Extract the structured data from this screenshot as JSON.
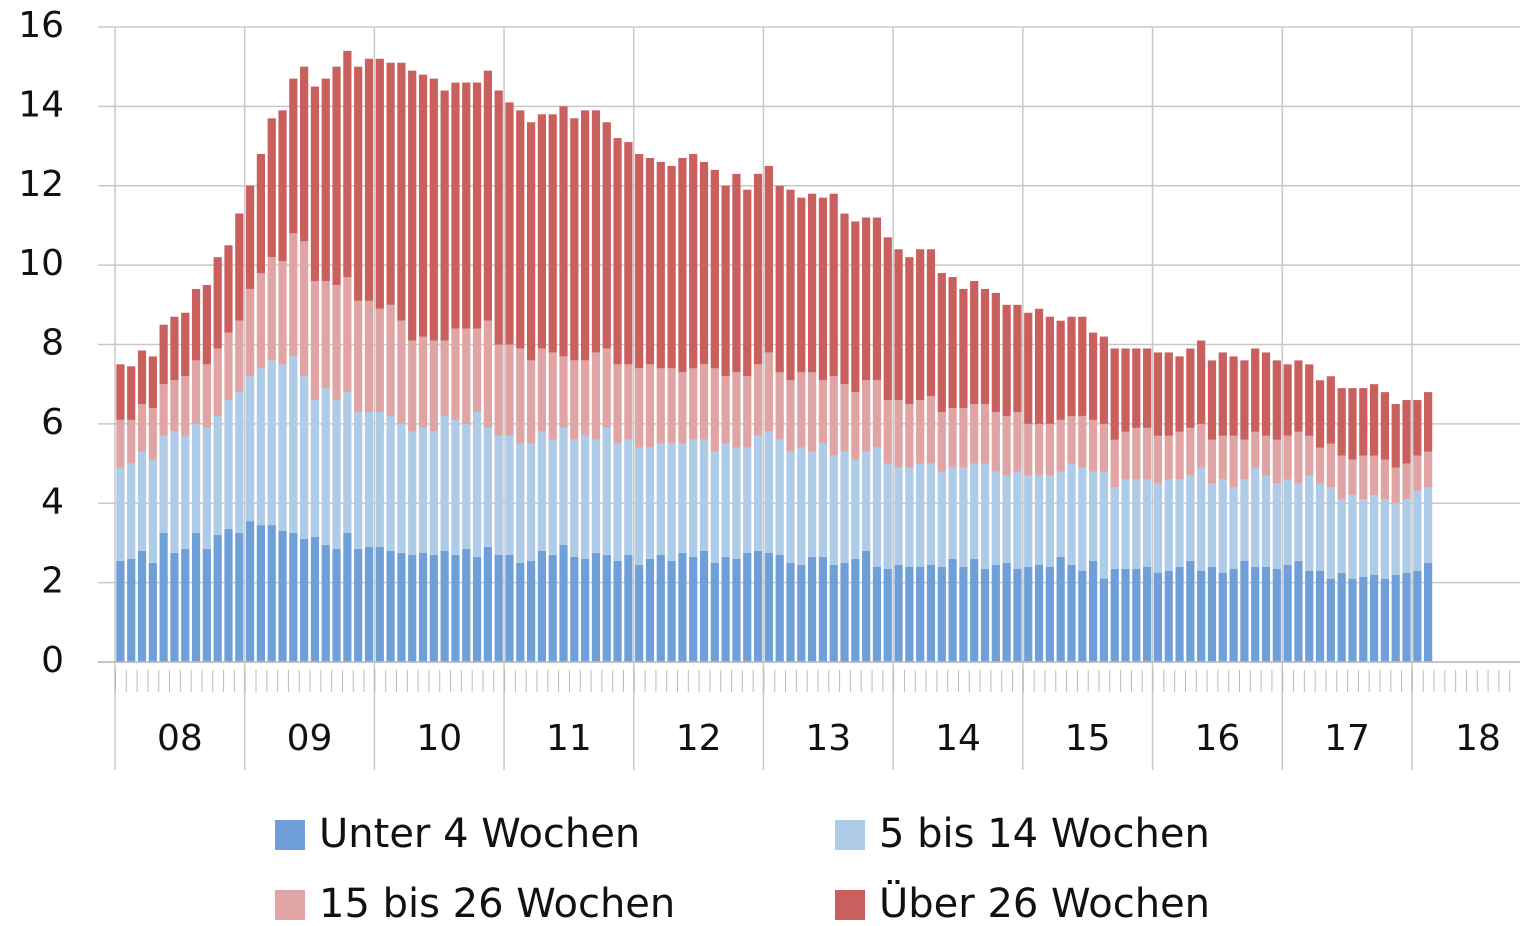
{
  "chart_data": {
    "type": "stacked_bar",
    "categories": [
      null,
      null,
      null,
      null,
      null,
      null,
      null,
      null,
      null,
      null,
      null,
      null,
      null,
      null,
      null,
      null,
      null,
      null,
      null,
      null,
      null,
      null,
      null,
      null,
      null,
      null,
      null,
      null,
      null,
      null,
      null,
      null,
      null,
      null,
      null,
      null,
      null,
      null,
      null,
      null,
      null,
      null,
      null,
      null,
      null,
      null,
      null,
      null,
      null,
      null,
      null,
      null,
      null,
      null,
      null,
      null,
      null,
      null,
      null,
      null,
      null,
      null,
      null,
      null,
      null,
      null,
      null,
      null,
      null,
      null,
      null,
      null,
      null,
      null,
      null,
      null,
      null,
      null,
      null,
      null,
      null,
      null,
      null,
      null,
      null,
      null,
      null,
      null,
      null,
      null,
      null,
      null,
      null,
      null,
      null,
      null,
      null,
      null,
      null,
      null,
      null,
      null,
      null,
      null,
      null,
      null,
      null,
      null,
      null,
      null,
      null,
      null,
      null,
      null,
      null,
      null,
      null,
      null,
      null,
      null,
      null,
      null,
      null,
      null,
      null,
      null,
      null,
      null,
      null,
      null
    ],
    "year_labels": [
      "08",
      "09",
      "10",
      "11",
      "12",
      "13",
      "14",
      "15",
      "16",
      "17",
      "18"
    ],
    "ylim": [
      0,
      16
    ],
    "yticks": [
      0,
      2,
      4,
      6,
      8,
      10,
      12,
      14,
      16
    ],
    "grid": true,
    "series": [
      {
        "name": "Unter 4 Wochen",
        "color": "#6f9fd8",
        "values": [
          2.55,
          2.6,
          2.8,
          2.5,
          3.25,
          2.75,
          2.85,
          3.25,
          2.85,
          3.2,
          3.35,
          3.25,
          3.55,
          3.45,
          3.45,
          3.3,
          3.25,
          3.1,
          3.15,
          2.95,
          2.85,
          3.25,
          2.85,
          2.9,
          2.9,
          2.8,
          2.75,
          2.7,
          2.75,
          2.7,
          2.8,
          2.7,
          2.85,
          2.65,
          2.9,
          2.7,
          2.7,
          2.5,
          2.55,
          2.8,
          2.7,
          2.95,
          2.65,
          2.6,
          2.75,
          2.7,
          2.55,
          2.7,
          2.45,
          2.6,
          2.7,
          2.55,
          2.75,
          2.65,
          2.8,
          2.5,
          2.65,
          2.6,
          2.75,
          2.8,
          2.75,
          2.7,
          2.5,
          2.45,
          2.65,
          2.65,
          2.45,
          2.5,
          2.6,
          2.8,
          2.4,
          2.35,
          2.45,
          2.4,
          2.4,
          2.45,
          2.4,
          2.6,
          2.4,
          2.6,
          2.35,
          2.45,
          2.5,
          2.35,
          2.4,
          2.45,
          2.4,
          2.65,
          2.45,
          2.3,
          2.55,
          2.1,
          2.35,
          2.35,
          2.35,
          2.4,
          2.25,
          2.3,
          2.4,
          2.55,
          2.3,
          2.4,
          2.25,
          2.35,
          2.55,
          2.4,
          2.4,
          2.35,
          2.45,
          2.55,
          2.3,
          2.3,
          2.1,
          2.25,
          2.1,
          2.15,
          2.2,
          2.1,
          2.2,
          2.25,
          2.3,
          2.5,
          null,
          null,
          null,
          null,
          null,
          null,
          null,
          null
        ]
      },
      {
        "name": "5 bis 14 Wochen",
        "color": "#aecbe8",
        "values": [
          2.35,
          2.4,
          2.5,
          2.6,
          2.45,
          3.05,
          2.85,
          2.75,
          3.05,
          3.0,
          3.25,
          3.55,
          3.65,
          3.95,
          4.15,
          4.2,
          4.45,
          4.1,
          3.45,
          3.95,
          3.75,
          3.55,
          3.45,
          3.4,
          3.4,
          3.4,
          3.25,
          3.1,
          3.15,
          3.1,
          3.4,
          3.4,
          3.15,
          3.65,
          3.0,
          3.0,
          3.0,
          3.0,
          2.95,
          3.0,
          2.9,
          2.95,
          2.95,
          3.1,
          2.85,
          3.2,
          2.95,
          2.9,
          2.95,
          2.8,
          2.8,
          2.95,
          2.75,
          2.95,
          2.8,
          2.8,
          2.85,
          2.8,
          2.65,
          2.9,
          3.05,
          2.9,
          2.8,
          2.95,
          2.65,
          2.85,
          2.75,
          2.8,
          2.5,
          2.5,
          3.0,
          2.65,
          2.45,
          2.5,
          2.6,
          2.55,
          2.4,
          2.3,
          2.5,
          2.4,
          2.65,
          2.35,
          2.2,
          2.45,
          2.3,
          2.25,
          2.3,
          2.15,
          2.55,
          2.6,
          2.25,
          2.7,
          2.05,
          2.25,
          2.25,
          2.2,
          2.25,
          2.3,
          2.2,
          2.15,
          2.6,
          2.1,
          2.35,
          2.05,
          2.05,
          2.5,
          2.3,
          2.15,
          2.15,
          1.95,
          2.4,
          2.2,
          2.3,
          1.85,
          2.1,
          1.95,
          2.0,
          2.0,
          1.8,
          1.85,
          2.0,
          1.9,
          null,
          null,
          null,
          null,
          null,
          null,
          null,
          null
        ]
      },
      {
        "name": "15 bis 26 Wochen",
        "color": "#e0a4a4",
        "values": [
          1.2,
          1.1,
          1.2,
          1.3,
          1.3,
          1.3,
          1.5,
          1.6,
          1.6,
          1.7,
          1.7,
          1.8,
          2.2,
          2.4,
          2.6,
          2.6,
          3.1,
          3.4,
          3.0,
          2.7,
          2.9,
          2.9,
          2.8,
          2.8,
          2.6,
          2.8,
          2.6,
          2.3,
          2.3,
          2.3,
          1.9,
          2.3,
          2.4,
          2.1,
          2.7,
          2.3,
          2.3,
          2.4,
          2.1,
          2.1,
          2.2,
          1.8,
          2.0,
          1.9,
          2.2,
          2.0,
          2.0,
          1.9,
          2.0,
          2.1,
          1.9,
          1.9,
          1.8,
          1.8,
          1.9,
          2.1,
          1.7,
          1.9,
          1.8,
          1.8,
          2.0,
          1.7,
          1.8,
          1.9,
          2.0,
          1.6,
          2.0,
          1.7,
          1.7,
          1.8,
          1.7,
          1.6,
          1.7,
          1.6,
          1.6,
          1.7,
          1.5,
          1.5,
          1.5,
          1.5,
          1.5,
          1.5,
          1.5,
          1.5,
          1.3,
          1.3,
          1.3,
          1.3,
          1.2,
          1.3,
          1.3,
          1.2,
          1.2,
          1.2,
          1.3,
          1.3,
          1.2,
          1.1,
          1.2,
          1.2,
          1.1,
          1.1,
          1.1,
          1.3,
          1.0,
          0.9,
          1.0,
          1.1,
          1.1,
          1.3,
          1.0,
          0.9,
          1.1,
          1.1,
          0.9,
          1.1,
          1.0,
          1.0,
          0.9,
          0.9,
          0.9,
          0.9,
          null,
          null,
          null,
          null,
          null,
          null,
          null,
          null
        ]
      },
      {
        "name": "Über 26 Wochen",
        "color": "#c9605e",
        "values": [
          1.4,
          1.35,
          1.35,
          1.3,
          1.5,
          1.6,
          1.6,
          1.8,
          2.0,
          2.3,
          2.2,
          2.7,
          2.6,
          3.0,
          3.5,
          3.8,
          3.9,
          4.4,
          4.9,
          5.1,
          5.5,
          5.7,
          5.9,
          6.1,
          6.3,
          6.1,
          6.5,
          6.8,
          6.6,
          6.6,
          6.3,
          6.2,
          6.2,
          6.2,
          6.3,
          6.4,
          6.1,
          6.0,
          6.0,
          5.9,
          6.0,
          6.3,
          6.1,
          6.3,
          6.1,
          5.7,
          5.7,
          5.6,
          5.4,
          5.2,
          5.2,
          5.1,
          5.4,
          5.4,
          5.1,
          5.0,
          4.8,
          5.0,
          4.7,
          4.8,
          4.7,
          4.7,
          4.8,
          4.4,
          4.5,
          4.6,
          4.6,
          4.3,
          4.3,
          4.1,
          4.1,
          4.1,
          3.8,
          3.7,
          3.8,
          3.7,
          3.5,
          3.3,
          3.0,
          3.1,
          2.9,
          3.0,
          2.8,
          2.7,
          2.8,
          2.9,
          2.7,
          2.5,
          2.5,
          2.5,
          2.2,
          2.2,
          2.3,
          2.1,
          2.0,
          2.0,
          2.1,
          2.1,
          1.9,
          2.0,
          2.1,
          2.0,
          2.1,
          2.0,
          2.0,
          2.1,
          2.1,
          2.0,
          1.8,
          1.8,
          1.8,
          1.7,
          1.7,
          1.7,
          1.8,
          1.7,
          1.8,
          1.7,
          1.6,
          1.6,
          1.4,
          1.5,
          null,
          null,
          null,
          null,
          null,
          null,
          null,
          null
        ]
      }
    ]
  }
}
